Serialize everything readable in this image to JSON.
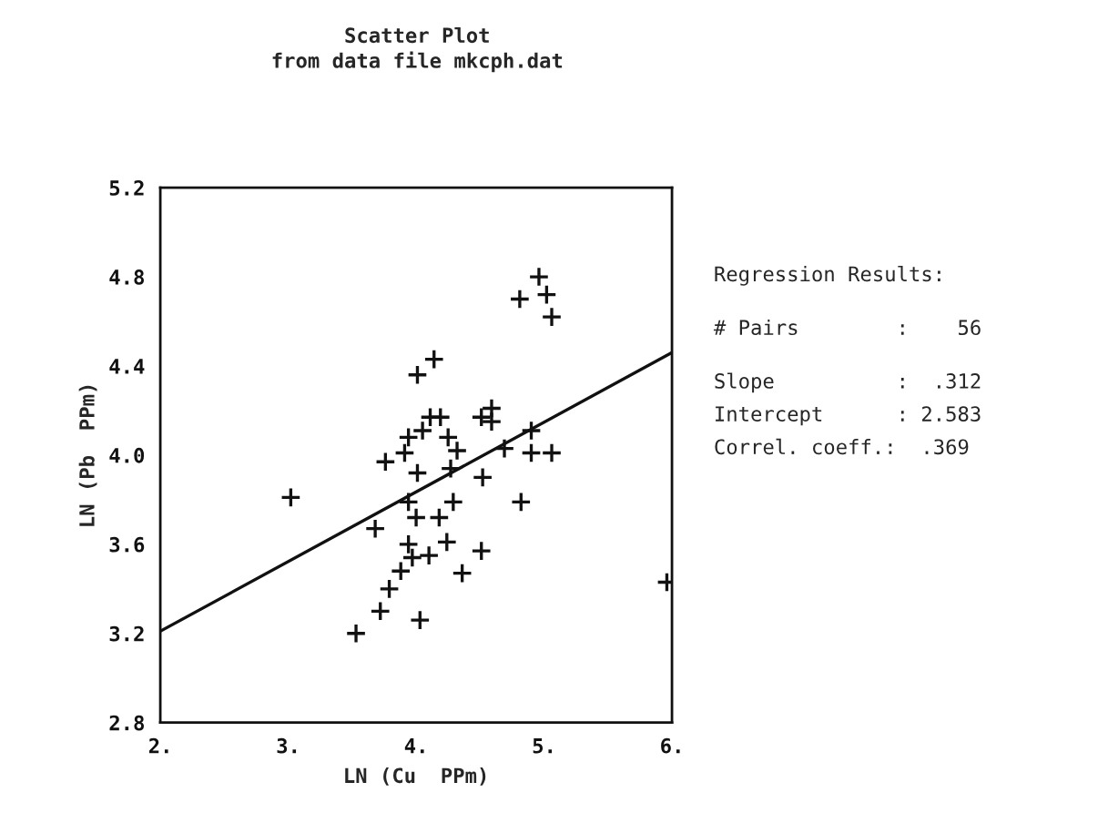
{
  "chart_data": {
    "type": "scatter",
    "title": "Scatter Plot",
    "subtitle": "from data file mkcph.dat",
    "xlabel": "LN (Cu  PPm)",
    "ylabel": "LN (Pb  PPm)",
    "xlim": [
      2,
      6
    ],
    "ylim": [
      2.8,
      5.2
    ],
    "xticks": [
      {
        "value": 2,
        "label": "2."
      },
      {
        "value": 3,
        "label": "3."
      },
      {
        "value": 4,
        "label": "4."
      },
      {
        "value": 5,
        "label": "5."
      },
      {
        "value": 6,
        "label": "6."
      }
    ],
    "yticks": [
      2.8,
      3.2,
      3.6,
      {
        "value": 4.0,
        "label": "4.0"
      },
      4.4,
      4.8,
      5.2
    ],
    "grid": false,
    "legend": false,
    "series": [
      {
        "marker": "cross",
        "color": "#111111",
        "x": [
          3.02,
          3.53,
          3.72,
          3.79,
          3.88,
          3.68,
          3.76,
          3.91,
          3.94,
          3.94,
          3.97,
          3.94,
          4.01,
          4.01,
          4.0,
          4.03,
          4.05,
          4.11,
          4.14,
          4.18,
          4.19,
          4.1,
          4.25,
          4.24,
          4.27,
          4.32,
          4.29,
          4.36,
          4.51,
          4.59,
          4.59,
          4.52,
          4.51,
          4.69,
          4.81,
          4.96,
          5.02,
          5.06,
          4.82,
          4.9,
          4.9,
          5.06,
          5.96
        ],
        "values": [
          3.81,
          3.2,
          3.3,
          3.4,
          3.48,
          3.67,
          3.97,
          4.01,
          4.08,
          3.6,
          3.54,
          3.79,
          3.92,
          4.36,
          3.72,
          3.26,
          4.11,
          4.17,
          4.43,
          3.72,
          4.17,
          3.55,
          4.08,
          3.61,
          3.94,
          4.02,
          3.79,
          3.47,
          4.17,
          4.21,
          4.15,
          3.9,
          3.57,
          4.03,
          4.7,
          4.8,
          4.72,
          4.62,
          3.79,
          4.11,
          4.01,
          4.01,
          3.43
        ]
      },
      {
        "type": "line",
        "color": "#111111",
        "line_style": "solid",
        "x": [
          2,
          6
        ],
        "values": [
          3.21,
          4.46
        ]
      }
    ],
    "annotations": [
      "Regression Results:",
      "# Pairs        :    56",
      "Slope          :  .312",
      "Intercept      : 2.583",
      "Correl. coeff.:  .369"
    ]
  }
}
